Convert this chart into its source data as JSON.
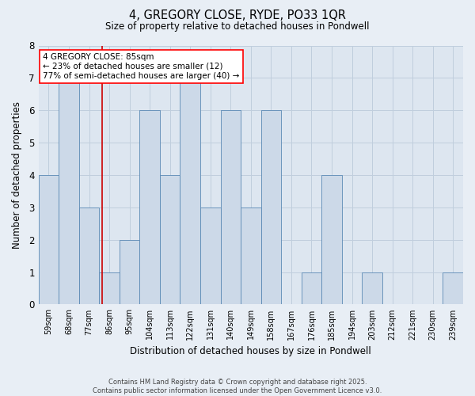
{
  "title1": "4, GREGORY CLOSE, RYDE, PO33 1QR",
  "title2": "Size of property relative to detached houses in Pondwell",
  "xlabel": "Distribution of detached houses by size in Pondwell",
  "ylabel": "Number of detached properties",
  "categories": [
    "59sqm",
    "68sqm",
    "77sqm",
    "86sqm",
    "95sqm",
    "104sqm",
    "113sqm",
    "122sqm",
    "131sqm",
    "140sqm",
    "149sqm",
    "158sqm",
    "167sqm",
    "176sqm",
    "185sqm",
    "194sqm",
    "203sqm",
    "212sqm",
    "221sqm",
    "230sqm",
    "239sqm"
  ],
  "values": [
    4,
    7,
    3,
    1,
    2,
    6,
    4,
    7,
    3,
    6,
    3,
    6,
    0,
    1,
    4,
    0,
    1,
    0,
    0,
    0,
    1
  ],
  "bar_color": "#ccd9e8",
  "bar_edge_color": "#5b8ab5",
  "property_line_x": 2.65,
  "annotation_title": "4 GREGORY CLOSE: 85sqm",
  "annotation_line1": "← 23% of detached houses are smaller (12)",
  "annotation_line2": "77% of semi-detached houses are larger (40) →",
  "red_line_color": "#cc0000",
  "ylim": [
    0,
    8
  ],
  "yticks": [
    0,
    1,
    2,
    3,
    4,
    5,
    6,
    7,
    8
  ],
  "footer1": "Contains HM Land Registry data © Crown copyright and database right 2025.",
  "footer2": "Contains public sector information licensed under the Open Government Licence v3.0.",
  "bg_color": "#e8eef5",
  "plot_bg_color": "#dde6f0",
  "grid_color": "#c0cedd"
}
